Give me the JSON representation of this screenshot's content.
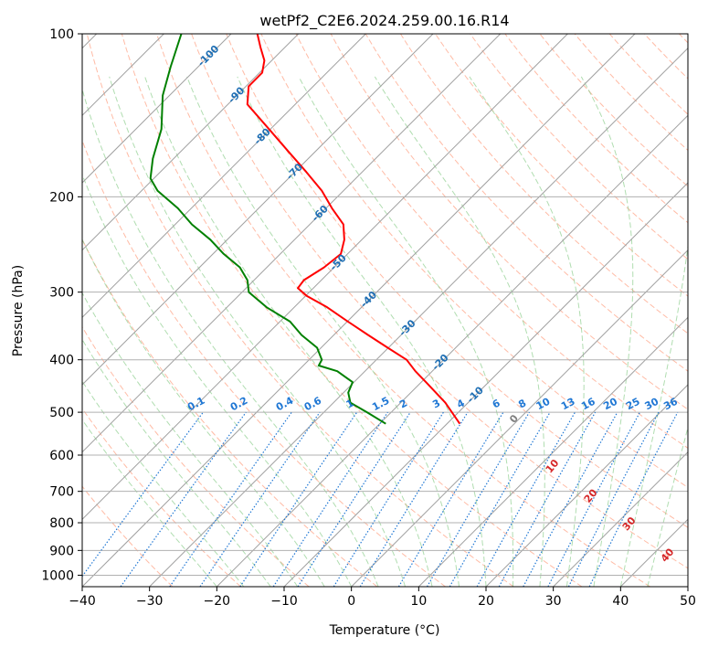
{
  "chart_data": {
    "type": "line",
    "title": "wetPf2_C2E6.2024.259.00.16.R14",
    "xlabel": "Temperature (°C)",
    "ylabel": "Pressure (hPa)",
    "xlim": [
      -40,
      50
    ],
    "ylim": [
      1050,
      100
    ],
    "y_scale": "log",
    "grid": true,
    "x_ticks": [
      -40,
      -30,
      -20,
      -10,
      0,
      10,
      20,
      30,
      40,
      50
    ],
    "y_ticks": [
      100,
      200,
      300,
      400,
      500,
      600,
      700,
      800,
      900,
      1000
    ],
    "series": [
      {
        "color": "#ff0000",
        "pressure": [
          525,
          480,
          440,
          420,
          400,
          380,
          360,
          340,
          320,
          305,
          295,
          285,
          270,
          255,
          240,
          225,
          210,
          195,
          180,
          165,
          150,
          135,
          125,
          118,
          112,
          106,
          100
        ],
        "values": [
          -8.1,
          -13.4,
          -19.3,
          -22.5,
          -25.5,
          -30.1,
          -34.9,
          -39.9,
          -45.1,
          -49.8,
          -52.3,
          -52.6,
          -51.5,
          -51.0,
          -52.6,
          -55.0,
          -59.1,
          -63.2,
          -68.3,
          -74.0,
          -80.2,
          -87.1,
          -89.6,
          -89.6,
          -91.1,
          -93.6,
          -96.1
        ]
      },
      {
        "color": "#008000",
        "pressure": [
          525,
          500,
          480,
          460,
          440,
          420,
          410,
          400,
          380,
          360,
          340,
          320,
          300,
          285,
          270,
          255,
          240,
          225,
          210,
          195,
          185,
          170,
          150,
          130,
          115,
          100
        ],
        "values": [
          -19.1,
          -23.6,
          -27.5,
          -29.3,
          -30.2,
          -34.1,
          -37.7,
          -38.1,
          -40.6,
          -44.8,
          -48.5,
          -54.1,
          -59.0,
          -61.0,
          -64.0,
          -68.4,
          -72.5,
          -77.5,
          -82.0,
          -87.6,
          -90.5,
          -93.1,
          -96.2,
          -101.0,
          -104.1,
          -107.4
        ]
      }
    ],
    "isotherm_labels": [
      "-100",
      "-90",
      "-80",
      "-70",
      "-60",
      "-50",
      "-40",
      "-30",
      "-20",
      "-10"
    ],
    "mixing_ratio_labels": [
      "0.1",
      "0.2",
      "0.4",
      "0.6",
      "1",
      "1.5",
      "2",
      "3",
      "4",
      "6",
      "8",
      "10",
      "13",
      "16",
      "20",
      "25",
      "30",
      "36"
    ],
    "moist_adiabat_labels": [
      "0",
      "10",
      "20",
      "30",
      "40"
    ],
    "colors": {
      "temperature": "#ff0000",
      "dewpoint": "#008000",
      "isotherm": "#a0a0a0",
      "dry_adiabat": "#ff9e7f",
      "moist_adiabat": "#8fce8f",
      "mixing_ratio": "#1f77d4",
      "isotherm_label": "#1f6fb4",
      "moist_label": "#d62728",
      "grid": "#b0b0b0"
    }
  }
}
